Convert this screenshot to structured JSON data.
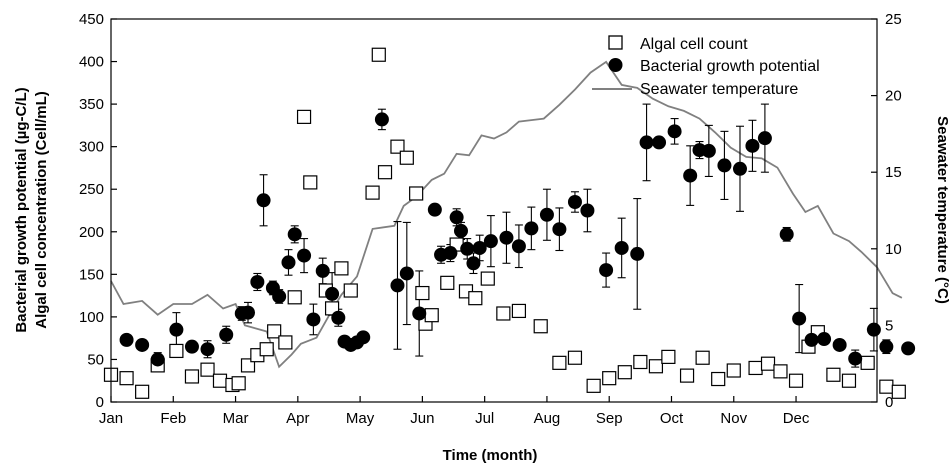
{
  "chart_data": {
    "type": "scatter",
    "xlabel": "Time (month)",
    "ylabel_left_line1": "Bacterial growth potential (µg-C/L)",
    "ylabel_left_line2": "Algal cell concentration (Cell/mL)",
    "ylabel_right": "Seawater temperature (°C)",
    "x_ticks": [
      "Jan",
      "Feb",
      "Mar",
      "Apr",
      "May",
      "Jun",
      "Jul",
      "Aug",
      "Sep",
      "Oct",
      "Nov",
      "Dec"
    ],
    "xlim": [
      0,
      12.3
    ],
    "ylim_left": [
      0,
      450
    ],
    "y_ticks_left": [
      0,
      50,
      100,
      150,
      200,
      250,
      300,
      350,
      400,
      450
    ],
    "ylim_right": [
      0,
      25
    ],
    "y_ticks_right": [
      0,
      5,
      10,
      15,
      20,
      25
    ],
    "legend_position": "top-right",
    "colors": {
      "line": "#808080",
      "marker": "#000000"
    },
    "series": [
      {
        "name": "Algal cell count",
        "marker": "open-square",
        "axis": "left",
        "points": [
          [
            0.0,
            32
          ],
          [
            0.25,
            28
          ],
          [
            0.5,
            12
          ],
          [
            0.75,
            43
          ],
          [
            1.05,
            60
          ],
          [
            1.3,
            30
          ],
          [
            1.55,
            38
          ],
          [
            1.75,
            25
          ],
          [
            1.95,
            20
          ],
          [
            2.05,
            22
          ],
          [
            2.2,
            43
          ],
          [
            2.35,
            55
          ],
          [
            2.5,
            62
          ],
          [
            2.62,
            83
          ],
          [
            2.8,
            70
          ],
          [
            2.95,
            123
          ],
          [
            3.1,
            335
          ],
          [
            3.2,
            258
          ],
          [
            3.45,
            131
          ],
          [
            3.55,
            110
          ],
          [
            3.7,
            157
          ],
          [
            3.85,
            131
          ],
          [
            4.2,
            246
          ],
          [
            4.3,
            408
          ],
          [
            4.4,
            270
          ],
          [
            4.6,
            300
          ],
          [
            4.75,
            287
          ],
          [
            4.9,
            245
          ],
          [
            5.0,
            128
          ],
          [
            5.05,
            92
          ],
          [
            5.15,
            102
          ],
          [
            5.4,
            140
          ],
          [
            5.55,
            185
          ],
          [
            5.7,
            130
          ],
          [
            5.85,
            122
          ],
          [
            6.05,
            145
          ],
          [
            6.3,
            104
          ],
          [
            6.55,
            107
          ],
          [
            6.9,
            89
          ],
          [
            7.2,
            46
          ],
          [
            7.45,
            52
          ],
          [
            7.75,
            19
          ],
          [
            8.0,
            28
          ],
          [
            8.25,
            35
          ],
          [
            8.5,
            47
          ],
          [
            8.75,
            42
          ],
          [
            8.95,
            53
          ],
          [
            9.25,
            31
          ],
          [
            9.5,
            52
          ],
          [
            9.75,
            27
          ],
          [
            10.0,
            37
          ],
          [
            10.35,
            40
          ],
          [
            10.55,
            45
          ],
          [
            10.75,
            36
          ],
          [
            11.0,
            25
          ],
          [
            11.2,
            65
          ],
          [
            11.35,
            82
          ],
          [
            11.6,
            32
          ],
          [
            11.85,
            25
          ],
          [
            12.15,
            46
          ],
          [
            12.45,
            18
          ],
          [
            12.65,
            12
          ]
        ]
      },
      {
        "name": "Bacterial growth potential",
        "marker": "filled-circle",
        "axis": "left",
        "points": [
          [
            0.25,
            73,
            0
          ],
          [
            0.5,
            67,
            0
          ],
          [
            0.75,
            50,
            8
          ],
          [
            1.05,
            85,
            20
          ],
          [
            1.3,
            65,
            0
          ],
          [
            1.55,
            62,
            10
          ],
          [
            1.85,
            79,
            10
          ],
          [
            2.1,
            104,
            8
          ],
          [
            2.2,
            105,
            12
          ],
          [
            2.35,
            141,
            10
          ],
          [
            2.45,
            237,
            30
          ],
          [
            2.6,
            134,
            8
          ],
          [
            2.7,
            124,
            8
          ],
          [
            2.85,
            164,
            15
          ],
          [
            2.95,
            197,
            10
          ],
          [
            3.1,
            172,
            20
          ],
          [
            3.25,
            97,
            18
          ],
          [
            3.4,
            154,
            15
          ],
          [
            3.55,
            127,
            25
          ],
          [
            3.65,
            99,
            10
          ],
          [
            3.75,
            71,
            0
          ],
          [
            3.85,
            67,
            0
          ],
          [
            3.95,
            70,
            0
          ],
          [
            4.05,
            76,
            0
          ],
          [
            4.35,
            332,
            12
          ],
          [
            4.6,
            137,
            75
          ],
          [
            4.75,
            151,
            60
          ],
          [
            4.95,
            104,
            50
          ],
          [
            5.2,
            226,
            0
          ],
          [
            5.3,
            173,
            10
          ],
          [
            5.45,
            175,
            10
          ],
          [
            5.55,
            217,
            10
          ],
          [
            5.62,
            201,
            10
          ],
          [
            5.72,
            180,
            12
          ],
          [
            5.82,
            163,
            12
          ],
          [
            5.92,
            181,
            15
          ],
          [
            6.1,
            189,
            30
          ],
          [
            6.35,
            193,
            30
          ],
          [
            6.55,
            183,
            25
          ],
          [
            6.75,
            204,
            25
          ],
          [
            7.0,
            220,
            30
          ],
          [
            7.2,
            203,
            25
          ],
          [
            7.45,
            235,
            12
          ],
          [
            7.65,
            225,
            25
          ],
          [
            7.95,
            155,
            20
          ],
          [
            8.2,
            181,
            35
          ],
          [
            8.45,
            174,
            65
          ],
          [
            8.6,
            305,
            45
          ],
          [
            8.8,
            305,
            0
          ],
          [
            9.05,
            318,
            15
          ],
          [
            9.3,
            266,
            35
          ],
          [
            9.45,
            296,
            10
          ],
          [
            9.6,
            295,
            30
          ],
          [
            9.85,
            278,
            40
          ],
          [
            10.1,
            274,
            50
          ],
          [
            10.3,
            301,
            30
          ],
          [
            10.5,
            310,
            40
          ],
          [
            10.85,
            197,
            8
          ],
          [
            11.05,
            98,
            40
          ],
          [
            11.25,
            73,
            0
          ],
          [
            11.45,
            74,
            0
          ],
          [
            11.7,
            67,
            0
          ],
          [
            11.95,
            51,
            10
          ],
          [
            12.25,
            85,
            25
          ],
          [
            12.45,
            65,
            8
          ],
          [
            12.8,
            63,
            0
          ]
        ]
      },
      {
        "name": "Seawater temperature",
        "marker": "line",
        "axis": "right",
        "points": [
          [
            0.0,
            7.9
          ],
          [
            0.2,
            6.4
          ],
          [
            0.5,
            6.6
          ],
          [
            0.75,
            5.7
          ],
          [
            1.0,
            6.4
          ],
          [
            1.3,
            6.4
          ],
          [
            1.55,
            7.0
          ],
          [
            1.8,
            6.1
          ],
          [
            2.0,
            6.4
          ],
          [
            2.15,
            5.0
          ],
          [
            2.5,
            4.6
          ],
          [
            2.7,
            2.3
          ],
          [
            2.9,
            3.1
          ],
          [
            3.05,
            3.8
          ],
          [
            3.3,
            4.2
          ],
          [
            3.55,
            6.0
          ],
          [
            3.7,
            7.0
          ],
          [
            3.95,
            8.2
          ],
          [
            4.2,
            11.3
          ],
          [
            4.55,
            11.5
          ],
          [
            4.7,
            12.8
          ],
          [
            4.9,
            13.4
          ],
          [
            5.15,
            14.5
          ],
          [
            5.35,
            14.9
          ],
          [
            5.55,
            16.2
          ],
          [
            5.75,
            16.1
          ],
          [
            5.95,
            17.4
          ],
          [
            6.15,
            17.2
          ],
          [
            6.35,
            17.6
          ],
          [
            6.55,
            18.3
          ],
          [
            6.75,
            18.4
          ],
          [
            6.95,
            18.5
          ],
          [
            7.2,
            19.4
          ],
          [
            7.45,
            20.4
          ],
          [
            7.7,
            21.5
          ],
          [
            7.95,
            22.2
          ],
          [
            8.2,
            20.7
          ],
          [
            8.45,
            20.5
          ],
          [
            8.7,
            19.8
          ],
          [
            8.95,
            19.3
          ],
          [
            9.2,
            19.0
          ],
          [
            9.45,
            18.5
          ],
          [
            9.7,
            17.6
          ],
          [
            9.95,
            16.6
          ],
          [
            10.2,
            16.0
          ],
          [
            10.45,
            15.9
          ],
          [
            10.7,
            15.3
          ],
          [
            10.95,
            13.6
          ],
          [
            11.15,
            12.4
          ],
          [
            11.35,
            12.8
          ],
          [
            11.6,
            11.0
          ],
          [
            11.85,
            10.5
          ],
          [
            12.05,
            9.8
          ],
          [
            12.3,
            8.8
          ],
          [
            12.55,
            7.1
          ],
          [
            12.7,
            6.8
          ]
        ]
      }
    ]
  }
}
